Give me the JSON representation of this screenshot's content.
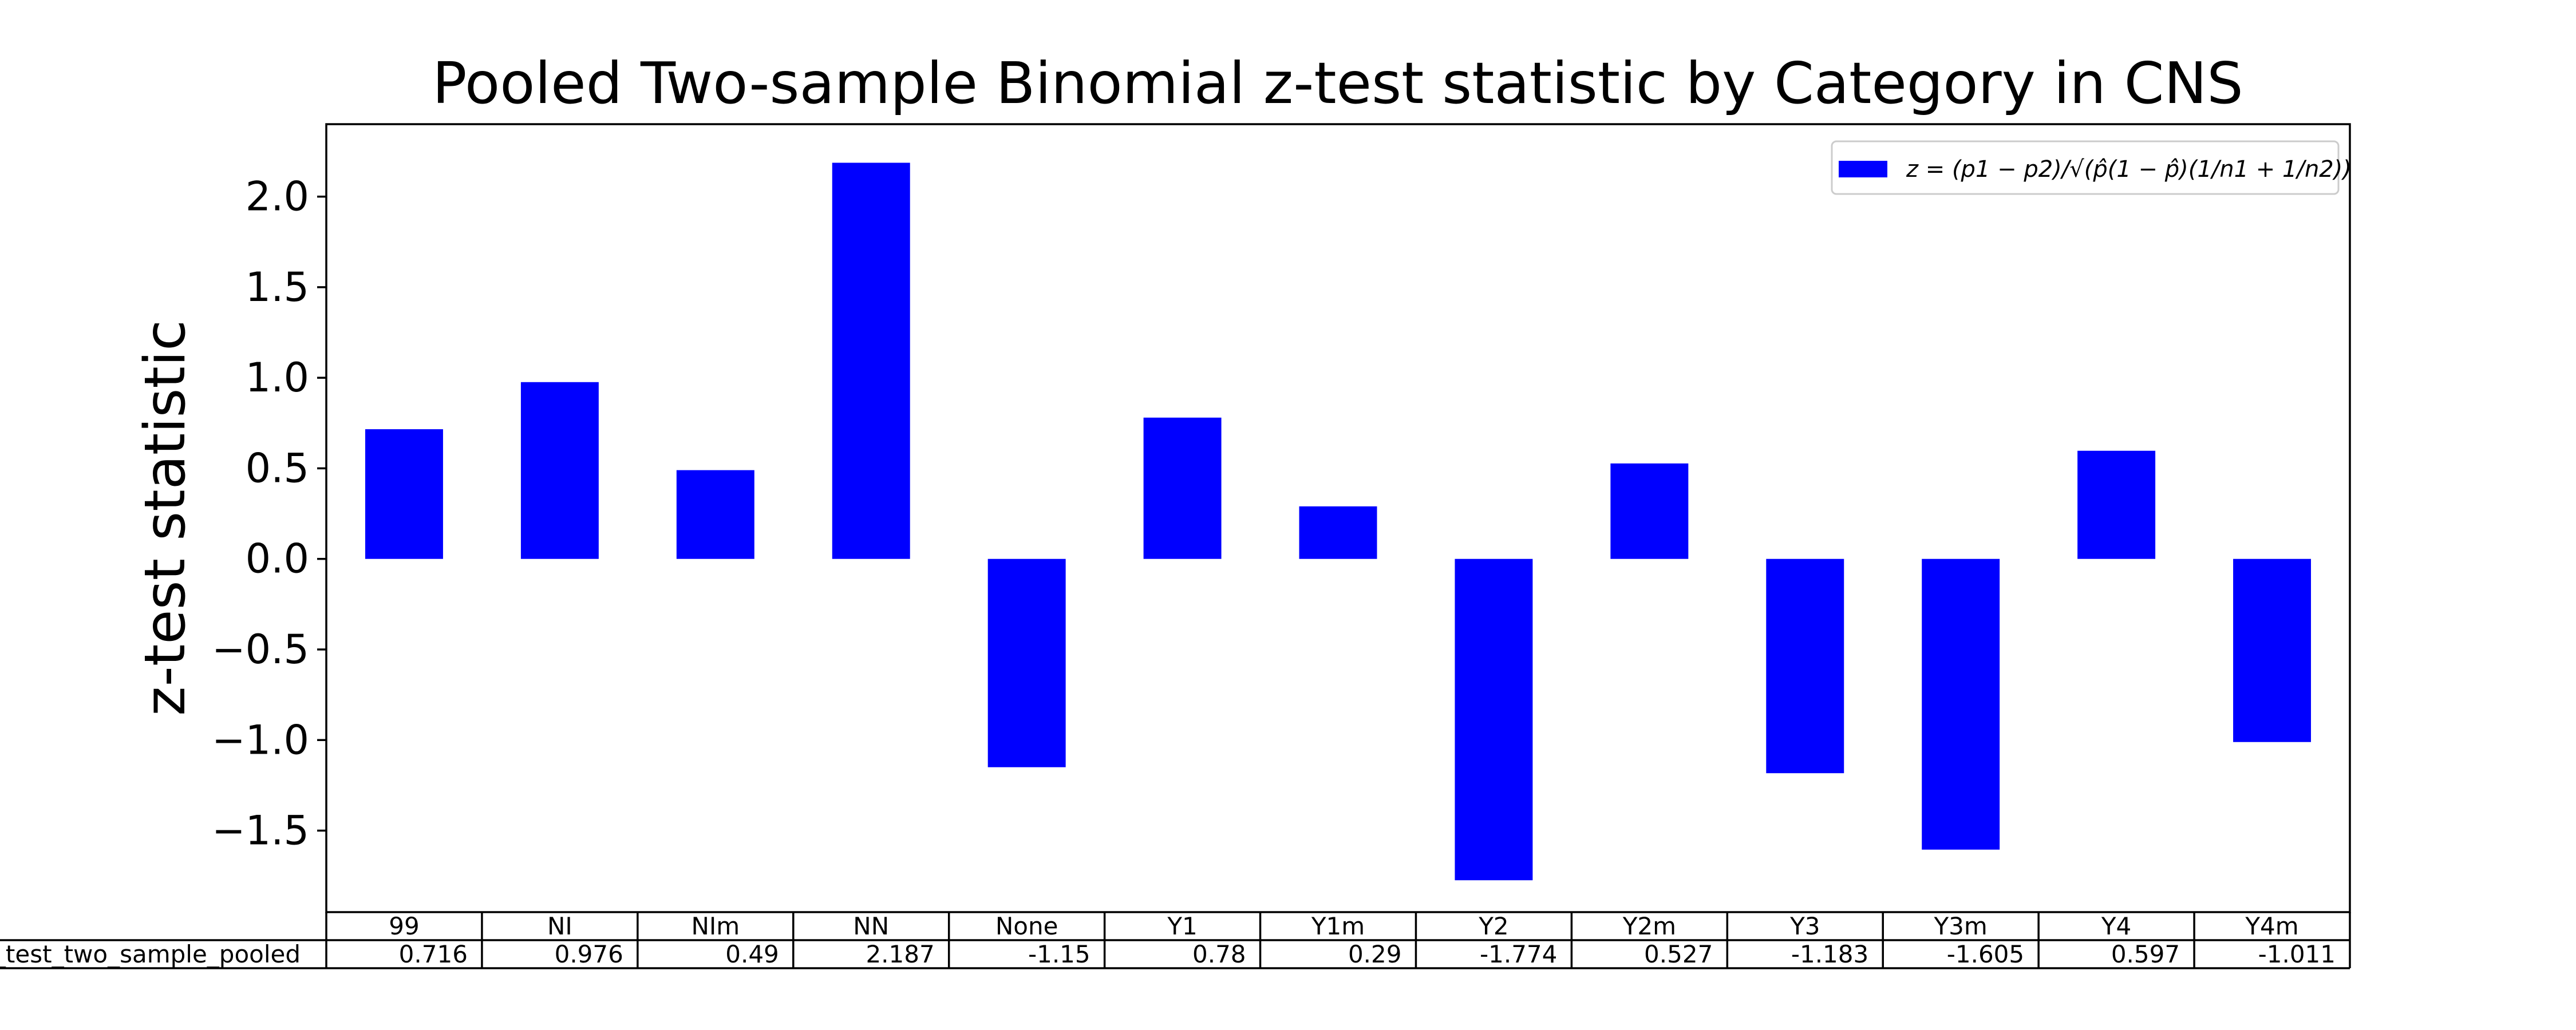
{
  "chart_data": {
    "type": "bar",
    "title": "Pooled Two-sample Binomial z-test statistic by Category in CNS",
    "xlabel": "",
    "ylabel": "z-test statistic",
    "categories": [
      "99",
      "NI",
      "NIm",
      "NN",
      "None",
      "Y1",
      "Y1m",
      "Y2",
      "Y2m",
      "Y3",
      "Y3m",
      "Y4",
      "Y4m"
    ],
    "series": [
      {
        "name": "z = (p1 − p2)/√(p̂(1 − p̂)(1/n1 + 1/n2))",
        "values": [
          0.716,
          0.976,
          0.49,
          2.187,
          -1.15,
          0.78,
          0.29,
          -1.774,
          0.527,
          -1.183,
          -1.605,
          0.597,
          -1.011
        ]
      }
    ],
    "ylim": [
      -1.95,
      2.4
    ],
    "yticks": [
      -1.5,
      -1.0,
      -0.5,
      0.0,
      0.5,
      1.0,
      1.5,
      2.0
    ],
    "ytick_labels": [
      "−1.5",
      "−1.0",
      "−0.5",
      "0.0",
      "0.5",
      "1.0",
      "1.5",
      "2.0"
    ],
    "legend_position": "top-right",
    "grid": false,
    "colors": {
      "bar": "#0000ff"
    },
    "table": {
      "row_label": "z_test_two_sample_pooled",
      "values": [
        "0.716",
        "0.976",
        "0.49",
        "2.187",
        "-1.15",
        "0.78",
        "0.29",
        "-1.774",
        "0.527",
        "-1.183",
        "-1.605",
        "0.597",
        "-1.011"
      ]
    }
  }
}
